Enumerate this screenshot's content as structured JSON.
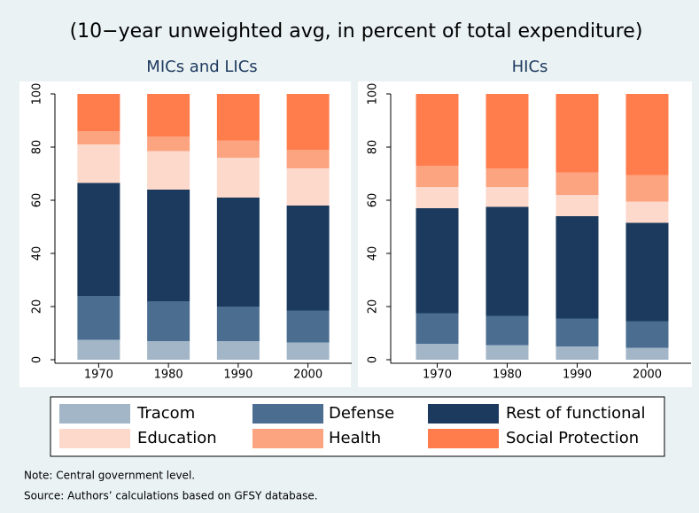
{
  "title": "(10−year unweighted avg, in percent of total expenditure)",
  "chart_data": [
    {
      "type": "bar",
      "stacked": true,
      "title": "MICs and LICs",
      "categories": [
        "1970",
        "1980",
        "1990",
        "2000"
      ],
      "ylim": [
        0,
        100
      ],
      "yticks": [
        0,
        20,
        40,
        60,
        80,
        100
      ],
      "series": [
        {
          "name": "Tracom",
          "color": "#a3b6c8",
          "values": [
            7.5,
            7,
            7,
            6.5
          ]
        },
        {
          "name": "Defense",
          "color": "#4a6d90",
          "values": [
            16.5,
            15,
            13,
            12
          ]
        },
        {
          "name": "Rest of functional",
          "color": "#1b3a5e",
          "values": [
            42.5,
            42,
            41,
            39.5
          ]
        },
        {
          "name": "Education",
          "color": "#fdd9cc",
          "values": [
            14.5,
            14.5,
            15,
            14
          ]
        },
        {
          "name": "Health",
          "color": "#fca380",
          "values": [
            5,
            5.5,
            6.5,
            7
          ]
        },
        {
          "name": "Social Protection",
          "color": "#ff7c4c",
          "values": [
            14,
            16,
            17.5,
            21
          ]
        }
      ]
    },
    {
      "type": "bar",
      "stacked": true,
      "title": "HICs",
      "categories": [
        "1970",
        "1980",
        "1990",
        "2000"
      ],
      "ylim": [
        0,
        100
      ],
      "yticks": [
        0,
        20,
        40,
        60,
        80,
        100
      ],
      "series": [
        {
          "name": "Tracom",
          "color": "#a3b6c8",
          "values": [
            6,
            5.5,
            5,
            4.5
          ]
        },
        {
          "name": "Defense",
          "color": "#4a6d90",
          "values": [
            11.5,
            11,
            10.5,
            10
          ]
        },
        {
          "name": "Rest of functional",
          "color": "#1b3a5e",
          "values": [
            39.5,
            41,
            38.5,
            37
          ]
        },
        {
          "name": "Education",
          "color": "#fdd9cc",
          "values": [
            8,
            7.5,
            8,
            8
          ]
        },
        {
          "name": "Health",
          "color": "#fca380",
          "values": [
            8,
            7,
            8.5,
            10
          ]
        },
        {
          "name": "Social Protection",
          "color": "#ff7c4c",
          "values": [
            27,
            28,
            29.5,
            30.5
          ]
        }
      ]
    }
  ],
  "notes": [
    "Note: Central government level.",
    "Source: Authors’ calculations based on GFSY database."
  ]
}
